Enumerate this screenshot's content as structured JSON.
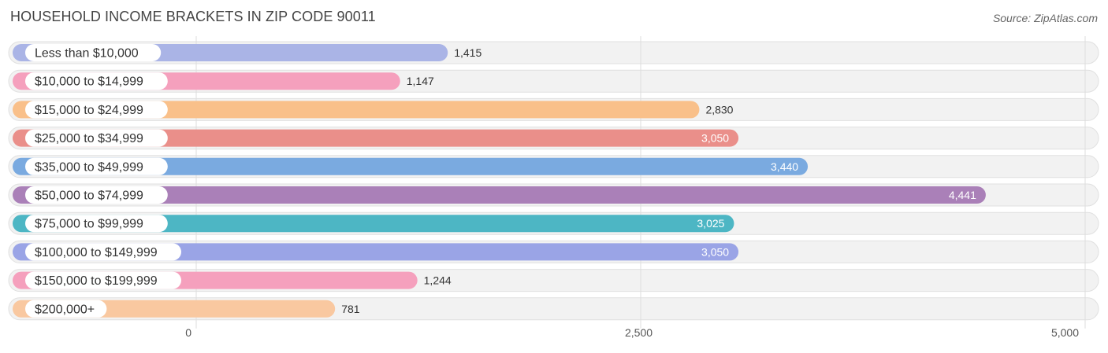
{
  "header": {
    "title": "HOUSEHOLD INCOME BRACKETS IN ZIP CODE 90011",
    "source": "Source: ZipAtlas.com"
  },
  "chart_data": {
    "type": "bar",
    "orientation": "horizontal",
    "title": "HOUSEHOLD INCOME BRACKETS IN ZIP CODE 90011",
    "categories": [
      "Less than $10,000",
      "$10,000 to $14,999",
      "$15,000 to $24,999",
      "$25,000 to $34,999",
      "$35,000 to $49,999",
      "$50,000 to $74,999",
      "$75,000 to $99,999",
      "$100,000 to $149,999",
      "$150,000 to $199,999",
      "$200,000+"
    ],
    "values": [
      1415,
      1147,
      2830,
      3050,
      3440,
      4441,
      3025,
      3050,
      1244,
      781
    ],
    "value_labels": [
      "1,415",
      "1,147",
      "2,830",
      "3,050",
      "3,440",
      "4,441",
      "3,025",
      "3,050",
      "1,244",
      "781"
    ],
    "colors": [
      "#aab4e6",
      "#f5a0bd",
      "#f9c08a",
      "#ea8f8a",
      "#7aaae0",
      "#aa80b8",
      "#4db6c4",
      "#9aa4e6",
      "#f5a0bd",
      "#f9c8a0"
    ],
    "xlim": [
      0,
      5000
    ],
    "xticks": [
      0,
      2500,
      5000
    ],
    "xtick_labels": [
      "0",
      "2,500",
      "5,000"
    ],
    "grid": true,
    "xlabel": "",
    "ylabel": ""
  }
}
